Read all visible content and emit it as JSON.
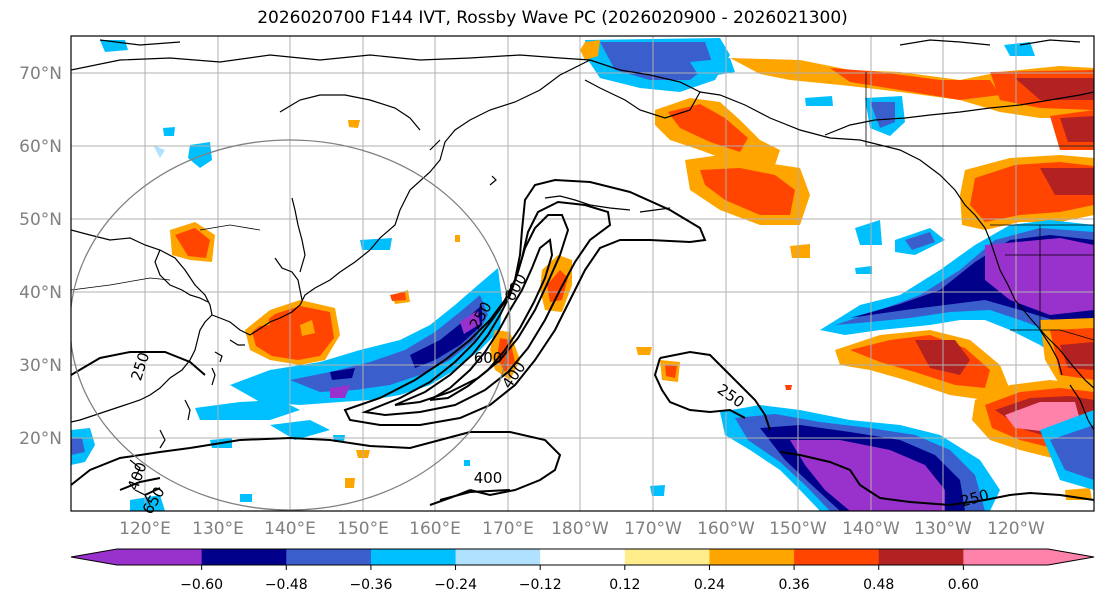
{
  "title": "2026020700 F144 IVT, Rossby Wave PC (2026020900 - 2026021300)",
  "lat_labels": [
    "70°N",
    "60°N",
    "50°N",
    "40°N",
    "30°N",
    "20°N"
  ],
  "lon_labels": [
    "120°E",
    "130°E",
    "140°E",
    "150°E",
    "160°E",
    "170°E",
    "180°W",
    "170°W",
    "160°W",
    "150°W",
    "140°W",
    "130°W",
    "120°W"
  ],
  "colorbar": {
    "colors": [
      "#9932cc",
      "#00008b",
      "#3a5fcd",
      "#00bfff",
      "#b0e2ff",
      "#ffffff",
      "#ffec8b",
      "#ffa500",
      "#ff4500",
      "#b22222",
      "#ff82ab"
    ],
    "tick_labels": [
      "−0.60",
      "−0.48",
      "−0.36",
      "−0.24",
      "−0.12",
      "0.12",
      "0.24",
      "0.36",
      "0.48",
      "0.60"
    ]
  },
  "contour_labels": [
    {
      "text": "250",
      "rot": -72
    },
    {
      "text": "250",
      "rot": -60
    },
    {
      "text": "600",
      "rot": -60
    },
    {
      "text": "600",
      "rot": 0
    },
    {
      "text": "400",
      "rot": -55
    },
    {
      "text": "250",
      "rot": 35
    },
    {
      "text": "400",
      "rot": 0
    },
    {
      "text": "400",
      "rot": -70
    },
    {
      "text": "250",
      "rot": -15
    },
    {
      "text": "650",
      "rot": -60
    }
  ]
}
